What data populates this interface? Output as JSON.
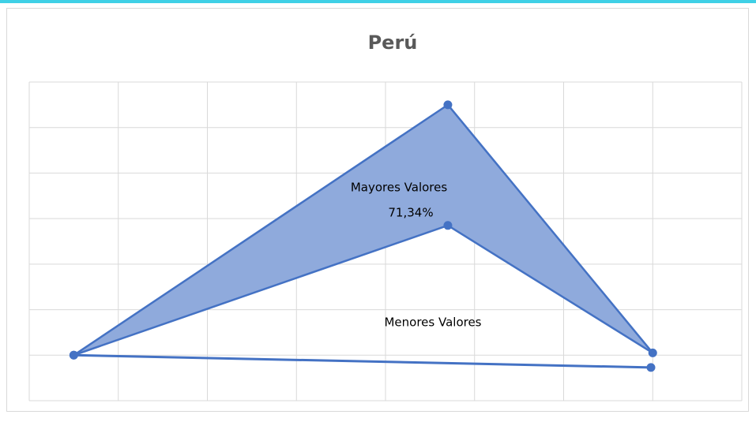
{
  "chart_data": {
    "type": "scatter",
    "title": "Perú",
    "annotations": [
      "71,34%"
    ],
    "series": [
      {
        "name": "Mayores Valores",
        "color": "#4472c4",
        "fill": "#8faadc",
        "x": [
          0.5,
          4.7,
          7.0,
          4.7
        ],
        "values": [
          1.0,
          6.5,
          1.05,
          3.85
        ]
      },
      {
        "name": "Menores Valores",
        "color": "#4472c4",
        "x": [
          0.5,
          6.98
        ],
        "values": [
          1.0,
          0.73
        ]
      }
    ],
    "xlim": [
      0,
      8
    ],
    "ylim": [
      0,
      7
    ],
    "xticks": [
      0,
      1,
      2,
      3,
      4,
      5,
      6,
      7,
      8
    ],
    "yticks": [
      0,
      1,
      2,
      3,
      4,
      5,
      6,
      7
    ],
    "grid": true
  }
}
